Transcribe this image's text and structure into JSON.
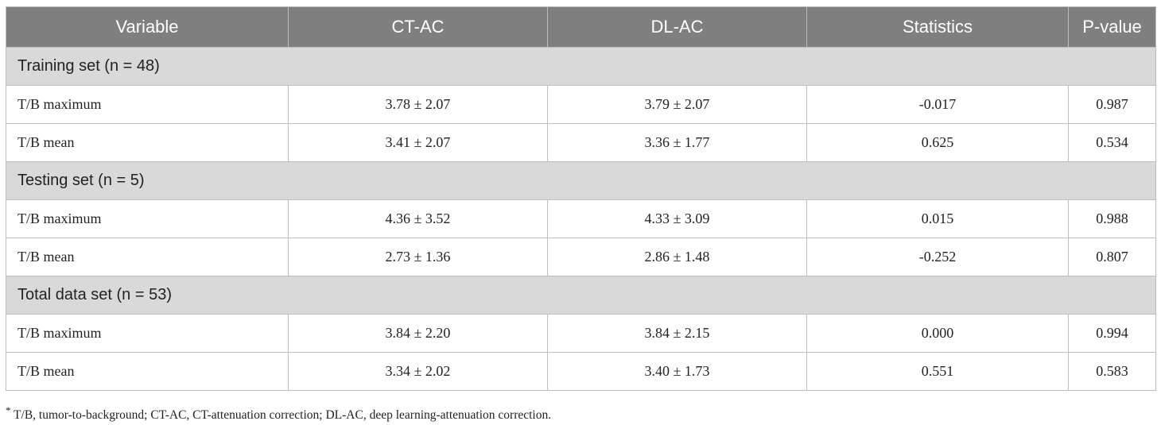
{
  "table": {
    "headers": [
      "Variable",
      "CT-AC",
      "DL-AC",
      "Statistics",
      "P-value"
    ],
    "groups": [
      {
        "title": "Training set (n = 48)",
        "rows": [
          [
            "T/B maximum",
            "3.78 ± 2.07",
            "3.79 ± 2.07",
            "-0.017",
            "0.987"
          ],
          [
            "T/B mean",
            "3.41 ± 2.07",
            "3.36 ± 1.77",
            "0.625",
            "0.534"
          ]
        ]
      },
      {
        "title": "Testing set (n = 5)",
        "rows": [
          [
            "T/B maximum",
            "4.36 ± 3.52",
            "4.33 ± 3.09",
            "0.015",
            "0.988"
          ],
          [
            "T/B mean",
            "2.73 ± 1.36",
            "2.86 ± 1.48",
            "-0.252",
            "0.807"
          ]
        ]
      },
      {
        "title": "Total data set (n = 53)",
        "rows": [
          [
            "T/B maximum",
            "3.84 ± 2.20",
            "3.84 ± 2.15",
            "0.000",
            "0.994"
          ],
          [
            "T/B mean",
            "3.34 ± 2.02",
            "3.40 ± 1.73",
            "0.551",
            "0.583"
          ]
        ]
      }
    ]
  },
  "footnote": {
    "marker": "*",
    "text": " T/B, tumor-to-background; CT-AC, CT-attenuation correction; DL-AC, deep learning-attenuation correction."
  },
  "colors": {
    "header_bg": "#7f7f7f",
    "group_bg": "#d9d9d9",
    "border": "#bdbdbd"
  }
}
